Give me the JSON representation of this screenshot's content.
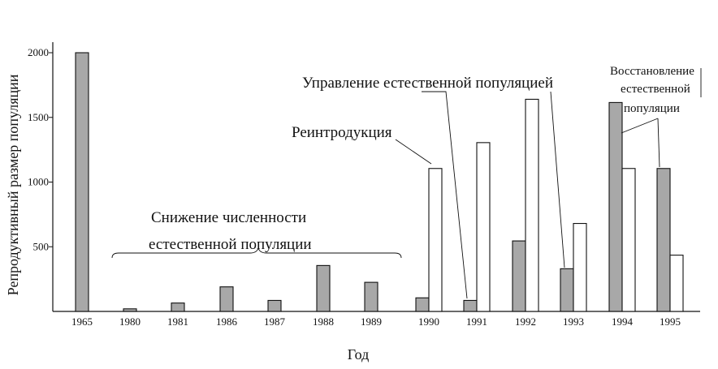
{
  "chart_data": {
    "type": "bar",
    "xlabel": "Год",
    "ylabel": "Репродуктивный размер популяции",
    "ylim": [
      0,
      2000
    ],
    "yticks": [
      500,
      1000,
      1500,
      2000
    ],
    "categories": [
      "1965",
      "1980",
      "1981",
      "1986",
      "1987",
      "1988",
      "1989",
      "1990",
      "1991",
      "1992",
      "1993",
      "1994",
      "1995"
    ],
    "series": [
      {
        "color": "#a8a8a8",
        "values": [
          2000,
          20,
          65,
          190,
          85,
          355,
          225,
          105,
          85,
          545,
          330,
          1615,
          1105
        ]
      },
      {
        "color": "#ffffff",
        "values": [
          null,
          null,
          null,
          null,
          null,
          null,
          null,
          1105,
          1305,
          1640,
          680,
          1105,
          435
        ]
      }
    ],
    "annotations": {
      "decline_line1": "Снижение численности",
      "decline_line2": "естественной популяции",
      "reintroduction": "Реинтродукция",
      "management": "Управление естественной популяцией",
      "recovery_line1": "Восстановление",
      "recovery_line2": "естественной",
      "recovery_line3": "популяции"
    }
  }
}
